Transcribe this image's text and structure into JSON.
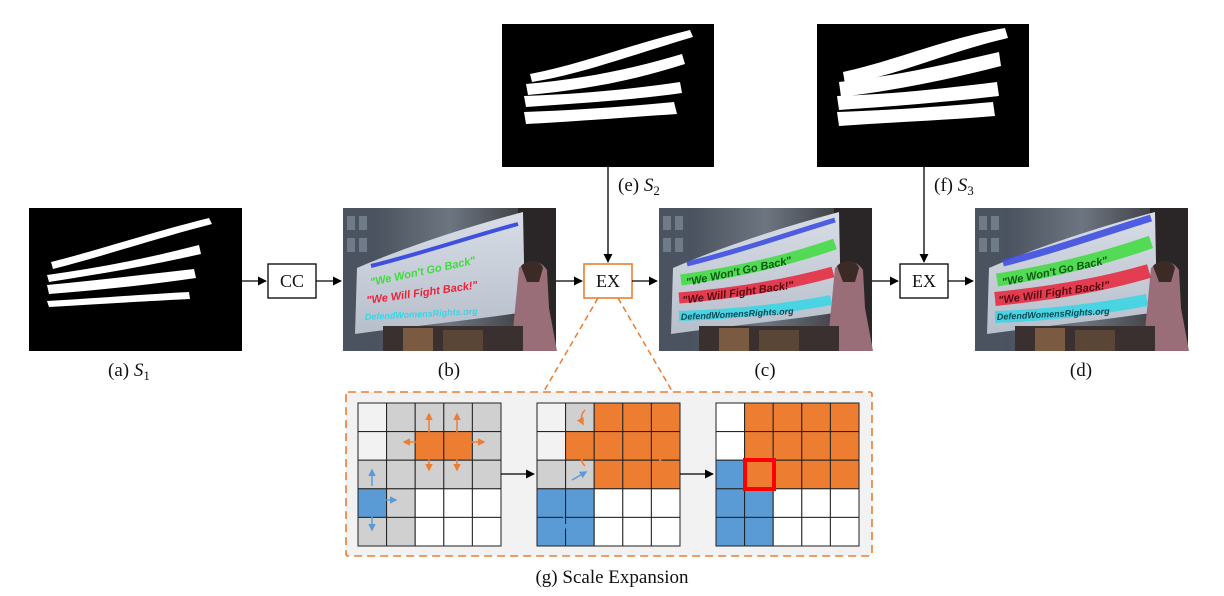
{
  "captions": {
    "a": {
      "prefix": "(a) ",
      "sym": "S",
      "sub": "1"
    },
    "b": "(b)",
    "c": "(c)",
    "d": "(d)",
    "e": {
      "prefix": "(e) ",
      "sym": "S",
      "sub": "2"
    },
    "f": {
      "prefix": "(f) ",
      "sym": "S",
      "sub": "3"
    },
    "g": "(g) Scale Expansion"
  },
  "boxes": {
    "cc": "CC",
    "ex1": "EX",
    "ex2": "EX"
  },
  "banner_lines": [
    "\"We Won't Go Back\"",
    "\"We Will Fight Back!\"",
    "DefendWomensRights.org"
  ],
  "grid_states": [
    {
      "name": "grid-initial",
      "cells": [
        "L",
        "G",
        "G",
        "G",
        "G",
        "L",
        "G",
        "O",
        "O",
        "G",
        "G",
        "G",
        "G",
        "G",
        "G",
        "B",
        "G",
        "W",
        "W",
        "W",
        "G",
        "G",
        "W",
        "W",
        "W"
      ]
    },
    {
      "name": "grid-expanding",
      "cells": [
        "L",
        "G",
        "O",
        "O",
        "O",
        "L",
        "O",
        "O",
        "O",
        "O",
        "G",
        "G",
        "O",
        "O",
        "O",
        "B",
        "B",
        "W",
        "W",
        "W",
        "B",
        "B",
        "W",
        "W",
        "W"
      ]
    },
    {
      "name": "grid-final",
      "cells": [
        "W",
        "O",
        "O",
        "O",
        "O",
        "W",
        "O",
        "O",
        "O",
        "O",
        "B",
        "O",
        "O",
        "O",
        "O",
        "B",
        "B",
        "W",
        "W",
        "W",
        "B",
        "B",
        "W",
        "W",
        "W"
      ]
    }
  ],
  "colors": {
    "orange": "#ed7d31",
    "blue": "#5b9bd5",
    "gray": "#d0d0d0",
    "light": "#f2f2f2",
    "white": "#ffffff",
    "conflict": "#ff0000",
    "text_green": "#3ddc3d",
    "text_red": "#e8233a",
    "text_cyan": "#35d6e6",
    "text_blue": "#3f4fe0"
  }
}
